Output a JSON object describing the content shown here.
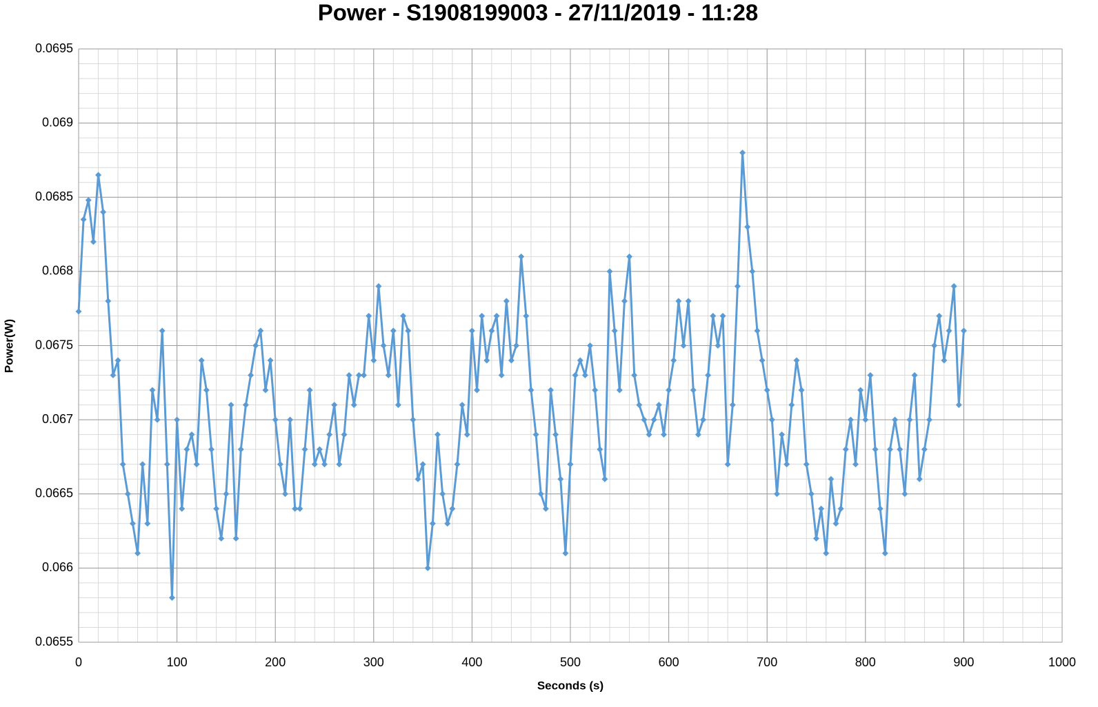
{
  "chart_data": {
    "type": "line",
    "title": "Power - S1908199003 - 27/11/2019 - 11:28",
    "x_label": "Seconds (s)",
    "y_label": "Power(W)",
    "color": "#5b9bd5",
    "marker": "diamond",
    "grid": true,
    "minor_xgrid_step": 20,
    "minor_ygrid_step": 0.0001,
    "xlim": [
      0,
      1000
    ],
    "xticks": [
      0,
      100,
      200,
      300,
      400,
      500,
      600,
      700,
      800,
      900,
      1000
    ],
    "ylim": [
      0.0655,
      0.0695
    ],
    "yticks": [
      0.0655,
      0.066,
      0.0665,
      0.067,
      0.0675,
      0.068,
      0.0685,
      0.069,
      0.0695
    ],
    "x": [
      0,
      5,
      10,
      15,
      20,
      25,
      30,
      35,
      40,
      45,
      50,
      55,
      60,
      65,
      70,
      75,
      80,
      85,
      90,
      95,
      100,
      105,
      110,
      115,
      120,
      125,
      130,
      135,
      140,
      145,
      150,
      155,
      160,
      165,
      170,
      175,
      180,
      185,
      190,
      195,
      200,
      205,
      210,
      215,
      220,
      225,
      230,
      235,
      240,
      245,
      250,
      255,
      260,
      265,
      270,
      275,
      280,
      285,
      290,
      295,
      300,
      305,
      310,
      315,
      320,
      325,
      330,
      335,
      340,
      345,
      350,
      355,
      360,
      365,
      370,
      375,
      380,
      385,
      390,
      395,
      400,
      405,
      410,
      415,
      420,
      425,
      430,
      435,
      440,
      445,
      450,
      455,
      460,
      465,
      470,
      475,
      480,
      485,
      490,
      495,
      500,
      505,
      510,
      515,
      520,
      525,
      530,
      535,
      540,
      545,
      550,
      555,
      560,
      565,
      570,
      575,
      580,
      585,
      590,
      595,
      600,
      605,
      610,
      615,
      620,
      625,
      630,
      635,
      640,
      645,
      650,
      655,
      660,
      665,
      670,
      675,
      680,
      685,
      690,
      695,
      700,
      705,
      710,
      715,
      720,
      725,
      730,
      735,
      740,
      745,
      750,
      755,
      760,
      765,
      770,
      775,
      780,
      785,
      790,
      795,
      800,
      805,
      810,
      815,
      820,
      825,
      830,
      835,
      840,
      845,
      850,
      855,
      860,
      865,
      870,
      875,
      880,
      885,
      890,
      895,
      900
    ],
    "values": [
      0.06773,
      0.06835,
      0.06848,
      0.0682,
      0.06865,
      0.0684,
      0.0678,
      0.0673,
      0.0674,
      0.0667,
      0.0665,
      0.0663,
      0.0661,
      0.0667,
      0.0663,
      0.0672,
      0.067,
      0.0676,
      0.0667,
      0.0658,
      0.067,
      0.0664,
      0.0668,
      0.0669,
      0.0667,
      0.0674,
      0.0672,
      0.0668,
      0.0664,
      0.0662,
      0.0665,
      0.0671,
      0.0662,
      0.0668,
      0.0671,
      0.0673,
      0.0675,
      0.0676,
      0.0672,
      0.0674,
      0.067,
      0.0667,
      0.0665,
      0.067,
      0.0664,
      0.0664,
      0.0668,
      0.0672,
      0.0667,
      0.0668,
      0.0667,
      0.0669,
      0.0671,
      0.0667,
      0.0669,
      0.0673,
      0.0671,
      0.0673,
      0.0673,
      0.0677,
      0.0674,
      0.0679,
      0.0675,
      0.0673,
      0.0676,
      0.0671,
      0.0677,
      0.0676,
      0.067,
      0.0666,
      0.0667,
      0.066,
      0.0663,
      0.0669,
      0.0665,
      0.0663,
      0.0664,
      0.0667,
      0.0671,
      0.0669,
      0.0676,
      0.0672,
      0.0677,
      0.0674,
      0.0676,
      0.0677,
      0.0673,
      0.0678,
      0.0674,
      0.0675,
      0.0681,
      0.0677,
      0.0672,
      0.0669,
      0.0665,
      0.0664,
      0.0672,
      0.0669,
      0.0666,
      0.0661,
      0.0667,
      0.0673,
      0.0674,
      0.0673,
      0.0675,
      0.0672,
      0.0668,
      0.0666,
      0.068,
      0.0676,
      0.0672,
      0.0678,
      0.0681,
      0.0673,
      0.0671,
      0.067,
      0.0669,
      0.067,
      0.0671,
      0.0669,
      0.0672,
      0.0674,
      0.0678,
      0.0675,
      0.0678,
      0.0672,
      0.0669,
      0.067,
      0.0673,
      0.0677,
      0.0675,
      0.0677,
      0.0667,
      0.0671,
      0.0679,
      0.0688,
      0.0683,
      0.068,
      0.0676,
      0.0674,
      0.0672,
      0.067,
      0.0665,
      0.0669,
      0.0667,
      0.0671,
      0.0674,
      0.0672,
      0.0667,
      0.0665,
      0.0662,
      0.0664,
      0.0661,
      0.0666,
      0.0663,
      0.0664,
      0.0668,
      0.067,
      0.0667,
      0.0672,
      0.067,
      0.0673,
      0.0668,
      0.0664,
      0.0661,
      0.0668,
      0.067,
      0.0668,
      0.0665,
      0.067,
      0.0673,
      0.0666,
      0.0668,
      0.067,
      0.0675,
      0.0677,
      0.0674,
      0.0676,
      0.0679,
      0.0671,
      0.0676
    ]
  }
}
